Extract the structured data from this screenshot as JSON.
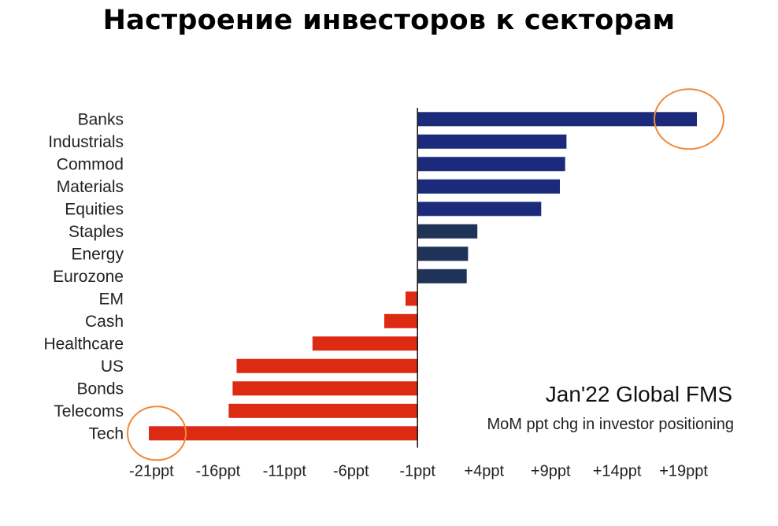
{
  "title": "Настроение инвесторов к секторам",
  "chart_data": {
    "type": "bar",
    "orientation": "horizontal",
    "categories": [
      "Banks",
      "Industrials",
      "Commod",
      "Materials",
      "Equities",
      "Staples",
      "Energy",
      "Eurozone",
      "EM",
      "Cash",
      "Healthcare",
      "US",
      "Bonds",
      "Telecoms",
      "Tech"
    ],
    "values": [
      20,
      10.2,
      10.1,
      9.7,
      8.3,
      3.5,
      2.8,
      2.7,
      -1.9,
      -3.5,
      -8.9,
      -14.6,
      -14.9,
      -15.2,
      -21.2
    ],
    "xlim": [
      -22,
      21
    ],
    "zero_line": -1,
    "x_ticks": [
      "-21ppt",
      "-16ppt",
      "-11ppt",
      "-6ppt",
      "-1ppt",
      "+4ppt",
      "+9ppt",
      "+14ppt",
      "+19ppt"
    ],
    "tick_values": [
      -21,
      -16,
      -11,
      -6,
      -1,
      4,
      9,
      14,
      19
    ],
    "annotation_title": "Jan'22 Global FMS",
    "annotation_subtitle": "MoM ppt chg in investor positioning",
    "highlighted": [
      "Banks",
      "Tech"
    ],
    "colors": {
      "positive_strong": "#1b2a7a",
      "positive_weak": "#1f3358",
      "negative": "#dd2a12",
      "highlight_circle": "#ee8a3c"
    }
  }
}
